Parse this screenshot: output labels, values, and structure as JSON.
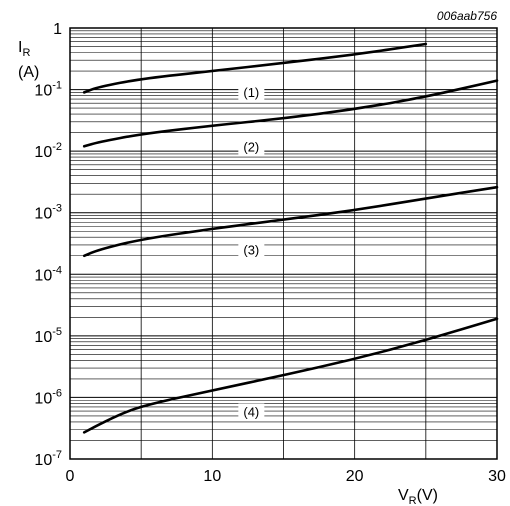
{
  "chart_data": {
    "type": "line",
    "figure_code": "006aab756",
    "y_axis": {
      "symbol": "I",
      "subscript": "R",
      "unit": "(A)",
      "scale": "log",
      "range": [
        1e-07,
        1
      ],
      "tick_labels": [
        {
          "base": "1",
          "exp": ""
        },
        {
          "base": "10",
          "exp": "-1"
        },
        {
          "base": "10",
          "exp": "-2"
        },
        {
          "base": "10",
          "exp": "-3"
        },
        {
          "base": "10",
          "exp": "-4"
        },
        {
          "base": "10",
          "exp": "-5"
        },
        {
          "base": "10",
          "exp": "-6"
        },
        {
          "base": "10",
          "exp": "-7"
        }
      ]
    },
    "x_axis": {
      "symbol": "V",
      "subscript": "R",
      "unit": "(V)",
      "scale": "linear",
      "range": [
        0,
        30
      ],
      "tick_labels": [
        "0",
        "10",
        "20",
        "30"
      ]
    },
    "grid": "on",
    "series": [
      {
        "label": "(1)",
        "x": [
          1,
          2,
          5,
          10,
          15,
          20,
          25
        ],
        "y": [
          0.09,
          0.11,
          0.15,
          0.2,
          0.27,
          0.37,
          0.55
        ]
      },
      {
        "label": "(2)",
        "x": [
          1,
          2,
          5,
          10,
          15,
          20,
          25,
          30
        ],
        "y": [
          0.012,
          0.014,
          0.019,
          0.026,
          0.034,
          0.048,
          0.076,
          0.14
        ]
      },
      {
        "label": "(3)",
        "x": [
          1,
          2,
          5,
          10,
          15,
          20,
          25,
          30
        ],
        "y": [
          0.0002,
          0.00025,
          0.00037,
          0.00055,
          0.00077,
          0.0011,
          0.0017,
          0.0026
        ]
      },
      {
        "label": "(4)",
        "x": [
          1,
          2,
          4,
          6,
          10,
          15,
          20,
          25,
          30
        ],
        "y": [
          2.7e-07,
          3.6e-07,
          6e-07,
          8.2e-07,
          1.3e-06,
          2.3e-06,
          4.2e-06,
          8.5e-06,
          1.9e-05
        ]
      }
    ]
  }
}
